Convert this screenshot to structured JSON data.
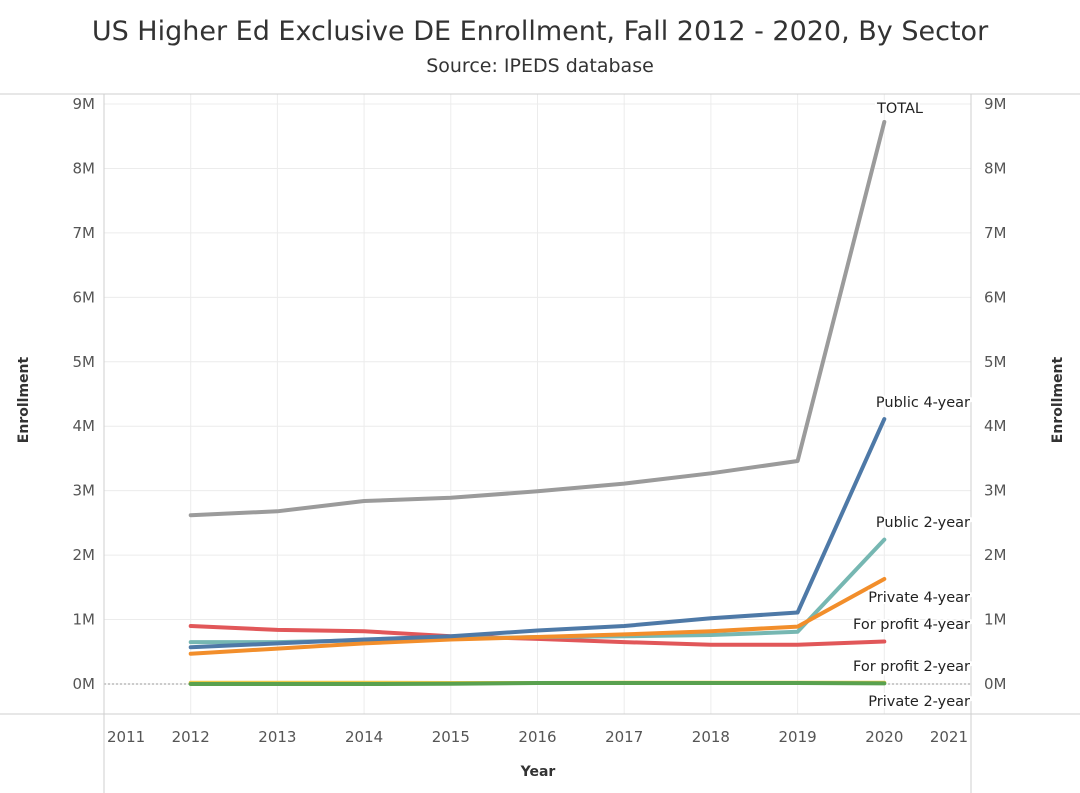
{
  "chart_data": {
    "type": "line",
    "title": "US Higher Ed Exclusive DE Enrollment, Fall 2012 - 2020, By Sector",
    "subtitle": "Source: IPEDS database",
    "xlabel": "Year",
    "ylabel": "Enrollment",
    "ylabel_right": "Enrollment",
    "xlim": [
      2011,
      2021
    ],
    "ylim": [
      0,
      9000000
    ],
    "x_ticks": [
      2011,
      2012,
      2013,
      2014,
      2015,
      2016,
      2017,
      2018,
      2019,
      2020,
      2021
    ],
    "x_tick_labels": [
      "2011",
      "2012",
      "2013",
      "2014",
      "2015",
      "2016",
      "2017",
      "2018",
      "2019",
      "2020",
      "2021"
    ],
    "y_ticks": [
      0,
      1000000,
      2000000,
      3000000,
      4000000,
      5000000,
      6000000,
      7000000,
      8000000,
      9000000
    ],
    "y_tick_labels": [
      "0M",
      "1M",
      "2M",
      "3M",
      "4M",
      "5M",
      "6M",
      "7M",
      "8M",
      "9M"
    ],
    "grid": true,
    "x": [
      2012,
      2013,
      2014,
      2015,
      2016,
      2017,
      2018,
      2019,
      2020
    ],
    "series": [
      {
        "name": "TOTAL",
        "label": "TOTAL",
        "color": "#9b9b9b",
        "values": [
          2620000,
          2680000,
          2840000,
          2890000,
          2990000,
          3110000,
          3270000,
          3460000,
          8720000
        ]
      },
      {
        "name": "Public 4-year",
        "label": "Public 4-year",
        "color": "#4e79a7",
        "values": [
          570000,
          630000,
          690000,
          740000,
          830000,
          900000,
          1020000,
          1110000,
          4110000
        ]
      },
      {
        "name": "Public 2-year",
        "label": "Public 2-year",
        "color": "#76b7b2",
        "values": [
          650000,
          650000,
          680000,
          700000,
          730000,
          740000,
          760000,
          810000,
          2240000
        ]
      },
      {
        "name": "Private 4-year",
        "label": "Private 4-year",
        "color": "#f28e2b",
        "values": [
          470000,
          550000,
          630000,
          690000,
          730000,
          770000,
          820000,
          890000,
          1630000
        ]
      },
      {
        "name": "For profit 4-year",
        "label": "For profit 4-year",
        "color": "#e15759",
        "values": [
          900000,
          840000,
          820000,
          740000,
          700000,
          650000,
          610000,
          610000,
          660000
        ]
      },
      {
        "name": "For profit 2-year",
        "label": "For profit 2-year",
        "color": "#edc948",
        "values": [
          20000,
          20000,
          20000,
          15000,
          15000,
          20000,
          20000,
          20000,
          18000
        ]
      },
      {
        "name": "Private 2-year",
        "label": "Private 2-year",
        "color": "#59a14f",
        "values": [
          0,
          0,
          0,
          5000,
          15000,
          15000,
          15000,
          15000,
          10000
        ]
      }
    ]
  }
}
